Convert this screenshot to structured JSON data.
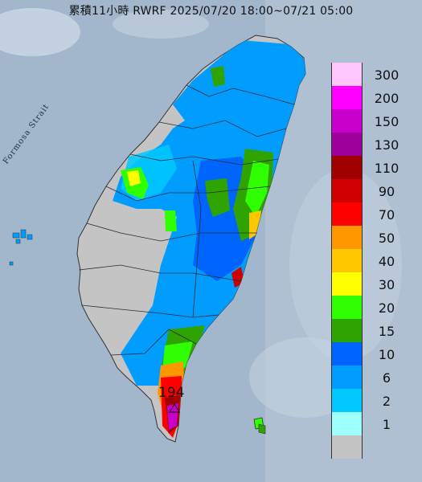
{
  "title": "累積11小時 RWRF 2025/07/20 18:00~07/21 05:00",
  "strait_label": "Formosa Strait",
  "max_value_label": "194",
  "legend": [
    {
      "label": "300",
      "color": "#ffc6fe"
    },
    {
      "label": "200",
      "color": "#fd00ff"
    },
    {
      "label": "150",
      "color": "#c900cb"
    },
    {
      "label": "130",
      "color": "#9e009b"
    },
    {
      "label": "110",
      "color": "#a00000"
    },
    {
      "label": "90",
      "color": "#d00000"
    },
    {
      "label": "70",
      "color": "#ff0000"
    },
    {
      "label": "50",
      "color": "#ff9800"
    },
    {
      "label": "40",
      "color": "#ffc700"
    },
    {
      "label": "30",
      "color": "#ffff00"
    },
    {
      "label": "20",
      "color": "#2fff00"
    },
    {
      "label": "15",
      "color": "#2fa300"
    },
    {
      "label": "10",
      "color": "#0065ff"
    },
    {
      "label": "6",
      "color": "#009dff"
    },
    {
      "label": "2",
      "color": "#00c9ff"
    },
    {
      "label": "1",
      "color": "#9efffd"
    },
    {
      "label": "",
      "color": "#c4c4c4"
    }
  ]
}
